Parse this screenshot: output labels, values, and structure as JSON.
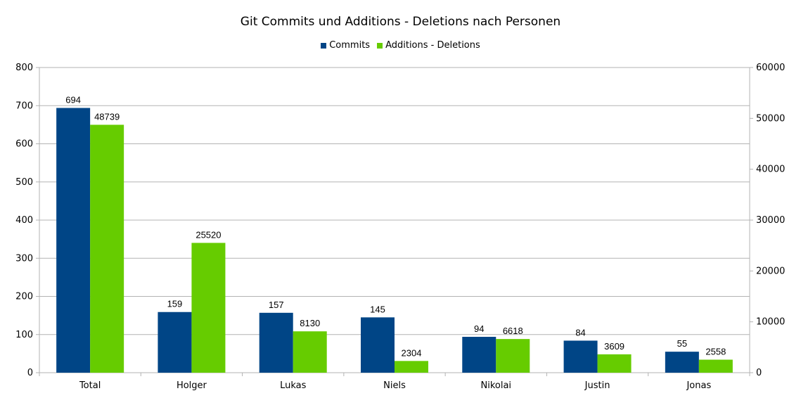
{
  "chart_data": {
    "type": "bar",
    "title": "Git Commits und Additions - Deletions nach Personen",
    "categories": [
      "Total",
      "Holger",
      "Lukas",
      "Niels",
      "Nikolai",
      "Justin",
      "Jonas"
    ],
    "series": [
      {
        "name": "Commits",
        "axis": "left",
        "color": "#004586",
        "values": [
          694,
          159,
          157,
          145,
          94,
          84,
          55
        ]
      },
      {
        "name": "Additions - Deletions",
        "axis": "right",
        "color": "#66cc00",
        "values": [
          48739,
          25520,
          8130,
          2304,
          6618,
          3609,
          2558
        ]
      }
    ],
    "y_left": {
      "min": 0,
      "max": 800,
      "step": 100,
      "ticks": [
        "0",
        "100",
        "200",
        "300",
        "400",
        "500",
        "600",
        "700",
        "800"
      ]
    },
    "y_right": {
      "min": 0,
      "max": 60000,
      "step": 10000,
      "ticks": [
        "0",
        "10000",
        "20000",
        "30000",
        "40000",
        "50000",
        "60000"
      ]
    },
    "grid": true,
    "legend_position": "top-center"
  }
}
